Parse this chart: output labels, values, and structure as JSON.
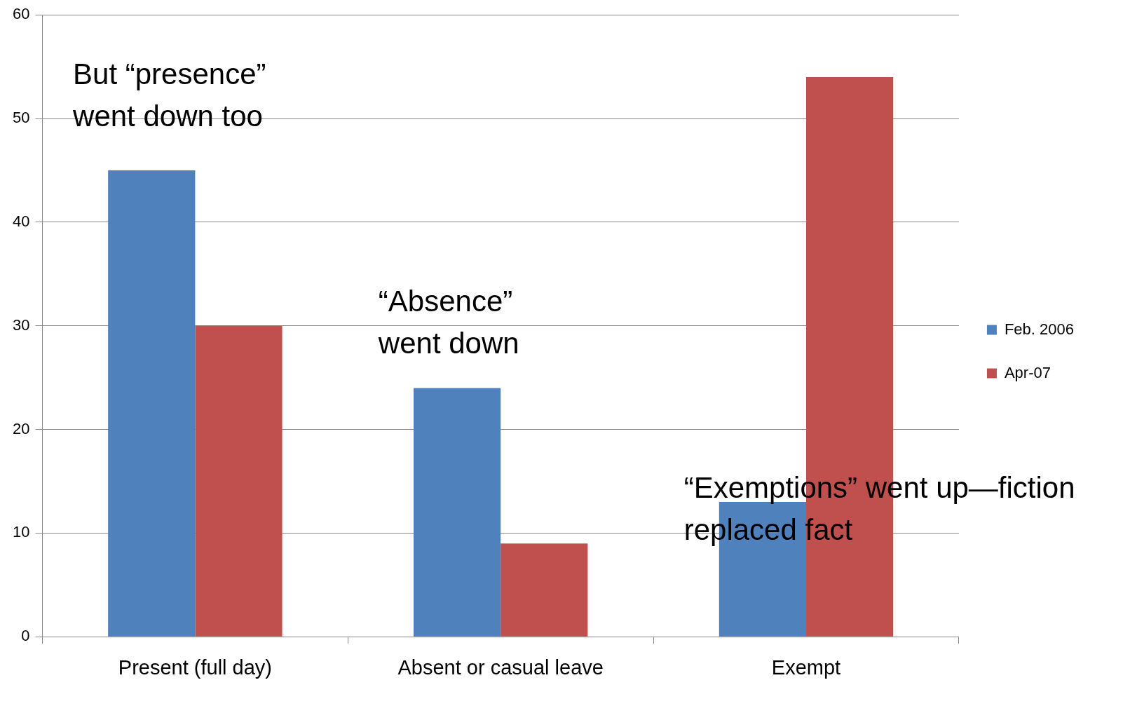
{
  "chart_data": {
    "type": "bar",
    "categories": [
      "Present (full day)",
      "Absent or casual leave",
      "Exempt"
    ],
    "series": [
      {
        "name": "Feb. 2006",
        "color": "#4f81bd",
        "values": [
          45,
          24,
          13
        ]
      },
      {
        "name": "Apr-07",
        "color": "#c0504d",
        "values": [
          30,
          9,
          54
        ]
      }
    ],
    "ylim": [
      0,
      60
    ],
    "yticks": [
      0,
      10,
      20,
      30,
      40,
      50,
      60
    ],
    "grid": "y",
    "legend": "right",
    "annotations": [
      "But “presence”\nwent down too",
      "“Absence”\nwent down",
      "“Exemptions” went up—fiction\nreplaced fact"
    ]
  }
}
